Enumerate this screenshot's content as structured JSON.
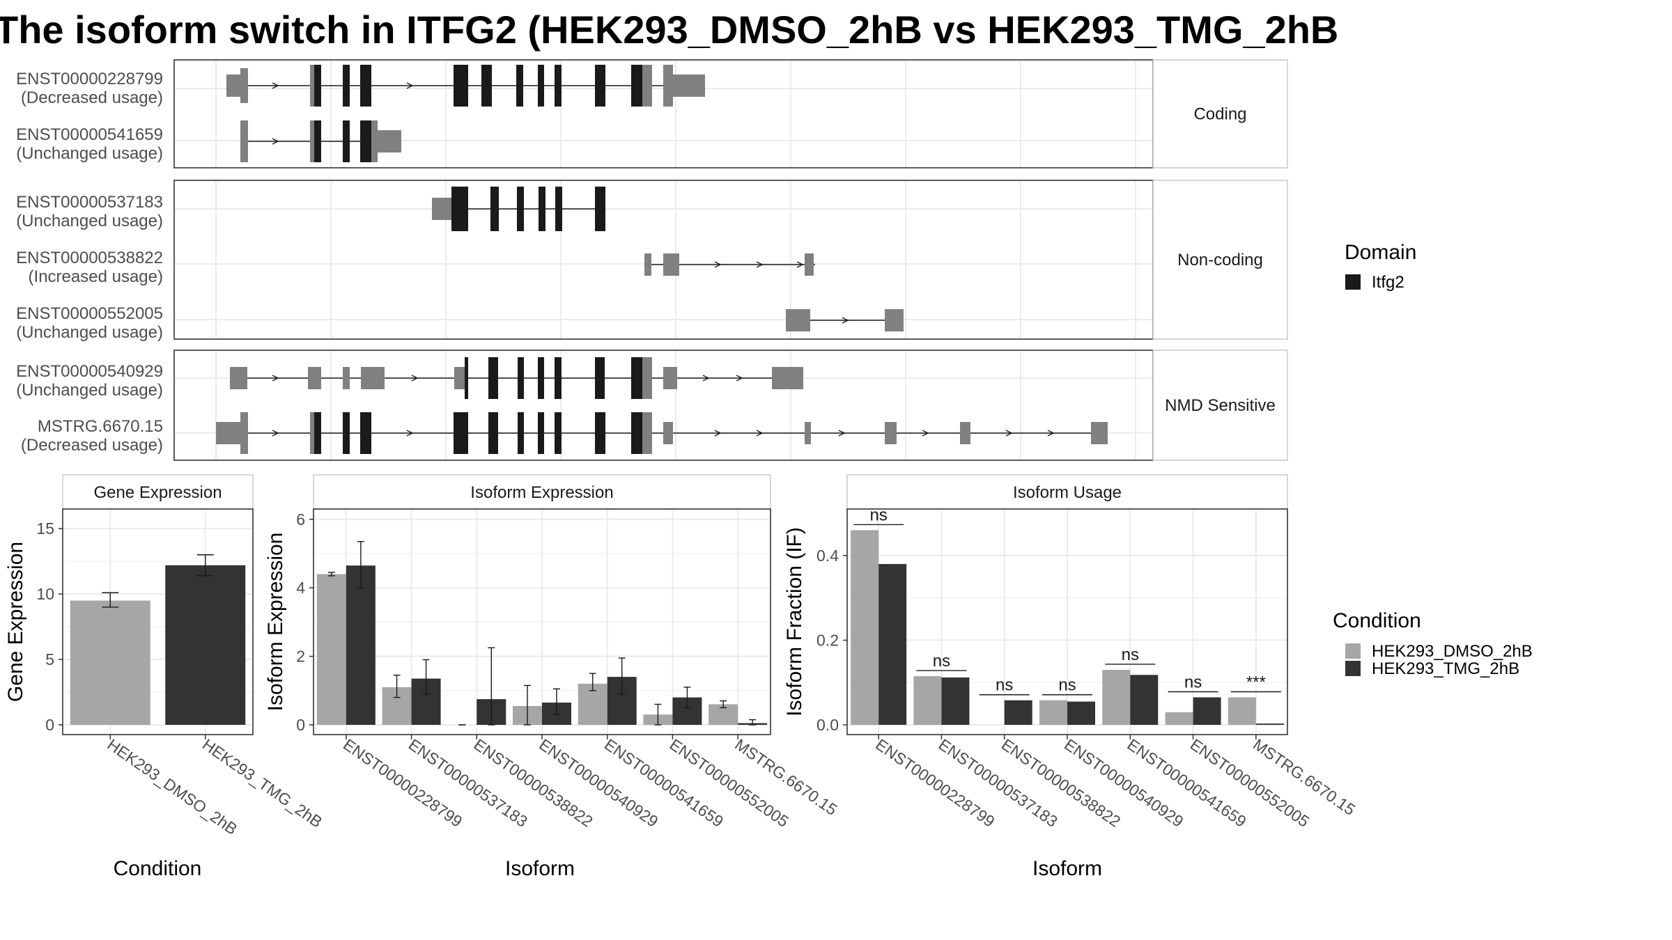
{
  "title": "The isoform switch in ITFG2 (HEK293_DMSO_2hB vs HEK293_TMG_2hB",
  "colors": {
    "domain": "#1a1a1a",
    "noncoding_exon": "#808080",
    "dmso": "#a6a6a6",
    "tmg": "#333333",
    "grid": "#ebebeb",
    "strip": "#ffffff"
  },
  "structure": {
    "facets": [
      "Coding",
      "Non-coding",
      "NMD Sensitive"
    ],
    "transcripts": [
      {
        "id": "ENST00000228799",
        "usage": "(Decreased usage)",
        "facet": "Coding"
      },
      {
        "id": "ENST00000541659",
        "usage": "(Unchanged usage)",
        "facet": "Coding"
      },
      {
        "id": "ENST00000537183",
        "usage": "(Unchanged usage)",
        "facet": "Non-coding"
      },
      {
        "id": "ENST00000538822",
        "usage": "(Increased usage)",
        "facet": "Non-coding"
      },
      {
        "id": "ENST00000552005",
        "usage": "(Unchanged usage)",
        "facet": "Non-coding"
      },
      {
        "id": "ENST00000540929",
        "usage": "(Unchanged usage)",
        "facet": "NMD Sensitive"
      },
      {
        "id": "MSTRG.6670.15",
        "usage": "(Decreased usage)",
        "facet": "NMD Sensitive"
      }
    ],
    "legend_title": "Domain",
    "legend_item": "Itfg2"
  },
  "chart_data": [
    {
      "type": "bar",
      "panel": "Gene Expression",
      "xlabel": "Condition",
      "ylabel": "Gene Expression",
      "ylim": [
        0,
        16.5
      ],
      "yticks": [
        "0",
        "5",
        "10",
        "15"
      ],
      "categories": [
        "HEK293_DMSO_2hB",
        "HEK293_TMG_2hB"
      ],
      "values": [
        9.5,
        12.2
      ],
      "errors": [
        [
          9.0,
          10.1
        ],
        [
          11.4,
          13.0
        ]
      ]
    },
    {
      "type": "bar",
      "panel": "Isoform Expression",
      "xlabel": "Isoform",
      "ylabel": "Isoform Expression",
      "ylim": [
        0,
        6.3
      ],
      "yticks": [
        "0",
        "2",
        "4",
        "6"
      ],
      "categories": [
        "ENST00000228799",
        "ENST00000537183",
        "ENST00000538822",
        "ENST00000540929",
        "ENST00000541659",
        "ENST00000552005",
        "MSTRG.6670.15"
      ],
      "series": [
        {
          "name": "HEK293_DMSO_2hB",
          "values": [
            4.4,
            1.1,
            0.0,
            0.55,
            1.2,
            0.3,
            0.6
          ],
          "errors": [
            [
              4.35,
              4.45
            ],
            [
              0.8,
              1.45
            ],
            [
              0,
              0
            ],
            [
              0.0,
              1.15
            ],
            [
              1.0,
              1.5
            ],
            [
              0.0,
              0.6
            ],
            [
              0.5,
              0.7
            ]
          ]
        },
        {
          "name": "HEK293_TMG_2hB",
          "values": [
            4.65,
            1.35,
            0.75,
            0.65,
            1.4,
            0.8,
            0.05
          ],
          "errors": [
            [
              4.0,
              5.35
            ],
            [
              0.9,
              1.9
            ],
            [
              0.0,
              2.25
            ],
            [
              0.3,
              1.05
            ],
            [
              0.9,
              1.95
            ],
            [
              0.5,
              1.1
            ],
            [
              0.0,
              0.15
            ]
          ]
        }
      ]
    },
    {
      "type": "bar",
      "panel": "Isoform Usage",
      "xlabel": "Isoform",
      "ylabel": "Isoform Fraction (IF)",
      "ylim": [
        0,
        0.51
      ],
      "yticks": [
        "0.0",
        "0.2",
        "0.4"
      ],
      "categories": [
        "ENST00000228799",
        "ENST00000537183",
        "ENST00000538822",
        "ENST00000540929",
        "ENST00000541659",
        "ENST00000552005",
        "MSTRG.6670.15"
      ],
      "series": [
        {
          "name": "HEK293_DMSO_2hB",
          "values": [
            0.46,
            0.115,
            0.0,
            0.058,
            0.13,
            0.03,
            0.065
          ]
        },
        {
          "name": "HEK293_TMG_2hB",
          "values": [
            0.38,
            0.112,
            0.058,
            0.055,
            0.118,
            0.065,
            0.003
          ]
        }
      ],
      "significance": [
        "ns",
        "ns",
        "ns",
        "ns",
        "ns",
        "ns",
        "***"
      ]
    }
  ],
  "condition_legend": {
    "title": "Condition",
    "items": [
      "HEK293_DMSO_2hB",
      "HEK293_TMG_2hB"
    ]
  }
}
